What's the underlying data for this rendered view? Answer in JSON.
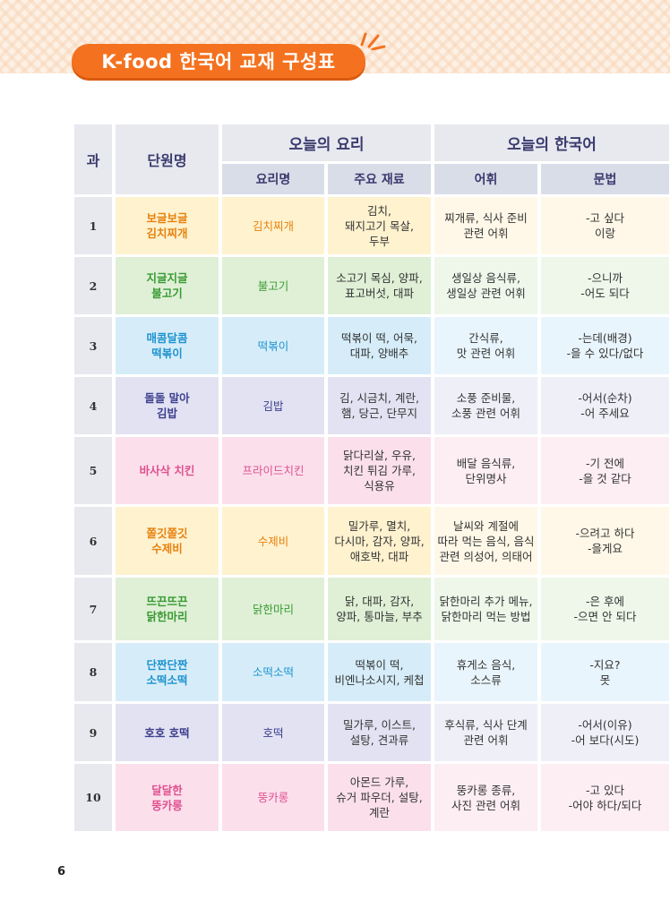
{
  "title": "K-food 한국어 교재 구성표",
  "page_number": "6",
  "headers": {
    "lesson": "과",
    "unit": "단원명",
    "group_cooking": "오늘의 요리",
    "group_korean": "오늘의 한국어",
    "dish": "요리명",
    "ingredients": "주요 재료",
    "vocabulary": "어휘",
    "grammar": "문법"
  },
  "rows": [
    {
      "lesson": "1",
      "theme": "yellow",
      "unit": [
        "보글보글",
        "김치찌개"
      ],
      "dish": "김치찌개",
      "ingredients": [
        "김치,",
        "돼지고기 목살,",
        "두부"
      ],
      "vocabulary": [
        "찌개류, 식사 준비",
        "관련 어휘"
      ],
      "grammar": [
        "-고 싶다",
        "이랑"
      ]
    },
    {
      "lesson": "2",
      "theme": "green",
      "unit": [
        "지글지글",
        "불고기"
      ],
      "dish": "불고기",
      "ingredients": [
        "소고기 목심, 양파,",
        "표고버섯, 대파"
      ],
      "vocabulary": [
        "생일상 음식류,",
        "생일상 관련 어휘"
      ],
      "grammar": [
        "-으니까",
        "-어도 되다"
      ]
    },
    {
      "lesson": "3",
      "theme": "blue",
      "unit": [
        "매콤달콤",
        "떡볶이"
      ],
      "dish": "떡볶이",
      "ingredients": [
        "떡볶이 떡, 어묵,",
        "대파, 양배추"
      ],
      "vocabulary": [
        "간식류,",
        "맛 관련 어휘"
      ],
      "grammar": [
        "-는데(배경)",
        "-을 수 있다/없다"
      ]
    },
    {
      "lesson": "4",
      "theme": "purple",
      "unit": [
        "돌돌 말아",
        "김밥"
      ],
      "dish": "김밥",
      "ingredients": [
        "김, 시금치, 계란,",
        "햄, 당근, 단무지"
      ],
      "vocabulary": [
        "소풍 준비물,",
        "소풍 관련 어휘"
      ],
      "grammar": [
        "-어서(순차)",
        "-어 주세요"
      ]
    },
    {
      "lesson": "5",
      "theme": "pink",
      "unit": [
        "바사삭 치킨"
      ],
      "dish": "프라이드치킨",
      "ingredients": [
        "닭다리살, 우유,",
        "치킨 튀김 가루,",
        "식용유"
      ],
      "vocabulary": [
        "배달 음식류,",
        "단위명사"
      ],
      "grammar": [
        "-기 전에",
        "-을 것 같다"
      ]
    },
    {
      "lesson": "6",
      "theme": "yellow",
      "unit": [
        "쫄깃쫄깃",
        "수제비"
      ],
      "dish": "수제비",
      "ingredients": [
        "밀가루, 멸치,",
        "다시마, 감자, 양파,",
        "애호박, 대파"
      ],
      "vocabulary": [
        "날씨와 계절에",
        "따라 먹는 음식, 음식",
        "관련 의성어, 의태어"
      ],
      "grammar": [
        "-으려고 하다",
        "-을게요"
      ]
    },
    {
      "lesson": "7",
      "theme": "green",
      "unit": [
        "뜨끈뜨끈",
        "닭한마리"
      ],
      "dish": "닭한마리",
      "ingredients": [
        "닭, 대파, 감자,",
        "양파, 통마늘, 부추"
      ],
      "vocabulary": [
        "닭한마리 추가 메뉴,",
        "닭한마리 먹는 방법"
      ],
      "grammar": [
        "-은 후에",
        "-으면 안 되다"
      ]
    },
    {
      "lesson": "8",
      "theme": "blue",
      "unit": [
        "단짠단짠",
        "소떡소떡"
      ],
      "dish": "소떡소떡",
      "ingredients": [
        "떡볶이 떡,",
        "비엔나소시지, 케첩"
      ],
      "vocabulary": [
        "휴게소 음식,",
        "소스류"
      ],
      "grammar": [
        "-지요?",
        "못"
      ]
    },
    {
      "lesson": "9",
      "theme": "purple",
      "unit": [
        "호호 호떡"
      ],
      "dish": "호떡",
      "ingredients": [
        "밀가루, 이스트,",
        "설탕, 견과류"
      ],
      "vocabulary": [
        "후식류, 식사 단계",
        "관련 어휘"
      ],
      "grammar": [
        "-어서(이유)",
        "-어 보다(시도)"
      ]
    },
    {
      "lesson": "10",
      "theme": "pink",
      "unit": [
        "달달한",
        "뚱카롱"
      ],
      "dish": "뚱카롱",
      "ingredients": [
        "아몬드 가루,",
        "슈거 파우더, 설탕,",
        "계란"
      ],
      "vocabulary": [
        "뚱카롱 종류,",
        "사진 관련 어휘"
      ],
      "grammar": [
        "-고 있다",
        "-어야 하다/되다"
      ]
    }
  ]
}
